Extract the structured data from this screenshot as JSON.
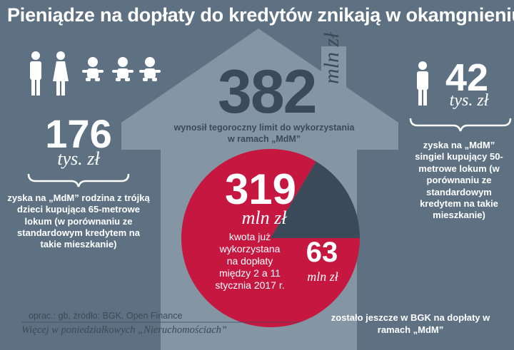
{
  "title": "Pieniądze  na dopłaty do kredytów  znikają w okamgnieniu",
  "chart_data": {
    "type": "pie",
    "total": {
      "value": "382",
      "unit": "mln zł",
      "description": "wynosił tegoroczny limit do wykorzystania w ramach „MdM”"
    },
    "slices": [
      {
        "value": 319,
        "label_value": "319",
        "unit": "mln zł",
        "description": "kwota już wykorzystana na dopłaty między 2 a 11 stycznia 2017 r.",
        "color": "#c5173f"
      },
      {
        "value": 63,
        "label_value": "63",
        "unit": "mln zł",
        "description": "zostało jeszcze w BGK na dopłaty w ramach „MdM”",
        "color": "#3b4a58"
      }
    ]
  },
  "family": {
    "value": "176",
    "unit": "tys. zł",
    "description": "zyska na „MdM” rodzina z trójką dzieci  kupująca 65-metrowe lokum (w porównaniu ze standardowym kredytem na takie mieszkanie)",
    "icons": [
      "man-icon",
      "woman-icon",
      "baby-icon",
      "baby-icon",
      "baby-icon"
    ]
  },
  "single": {
    "value": "42",
    "unit": "tys. zł",
    "description": "zyska na „MdM” singiel kupujący 50-metrowe lokum (w porównaniu ze standardowym kredytem na takie mieszkanie)",
    "icons": [
      "man-icon"
    ]
  },
  "source": "oprac.: gb, źródło: BGK, Open Finance",
  "footnote": "Więcej w poniedziałkowych „Nieruchomościach”",
  "colors": {
    "background": "#5e7183",
    "house": "#8495a4",
    "dark": "#3b4a58",
    "accent": "#c5173f",
    "text": "#ffffff"
  }
}
